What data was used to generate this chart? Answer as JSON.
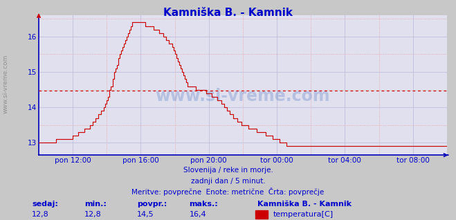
{
  "title": "Kamniška B. - Kamnik",
  "title_color": "#0000cc",
  "bg_color": "#c8c8c8",
  "plot_bg_color": "#e0e0ee",
  "line_color": "#cc0000",
  "avg_value": 14.47,
  "avg_line_color": "#cc0000",
  "axis_color": "#0000bb",
  "tick_color": "#0000cc",
  "ylim": [
    12.65,
    16.6
  ],
  "yticks": [
    13,
    14,
    15,
    16
  ],
  "xlim": [
    0,
    287
  ],
  "xtick_positions": [
    24,
    72,
    120,
    168,
    216,
    264
  ],
  "xtick_labels": [
    "pon 12:00",
    "pon 16:00",
    "pon 20:00",
    "tor 00:00",
    "tor 04:00",
    "tor 08:00"
  ],
  "side_text": "www.si-vreme.com",
  "watermark": "www.si-vreme.com",
  "subtitle1": "Slovenija / reke in morje.",
  "subtitle2": "zadnji dan / 5 minut.",
  "subtitle3": "Meritve: povprečne  Enote: metrične  Črta: povprečje",
  "footer_labels": [
    "sedaj:",
    "min.:",
    "povpr.:",
    "maks.:"
  ],
  "footer_values": [
    "12,8",
    "12,8",
    "14,5",
    "16,4"
  ],
  "legend_title": "Kamniška B. - Kamnik",
  "legend_label": "temperatura[C]",
  "legend_color": "#cc0000",
  "temperature_data": [
    13.0,
    13.0,
    13.0,
    13.0,
    13.0,
    13.0,
    13.0,
    13.0,
    13.0,
    13.0,
    13.0,
    13.0,
    13.1,
    13.1,
    13.1,
    13.1,
    13.1,
    13.1,
    13.1,
    13.1,
    13.1,
    13.1,
    13.1,
    13.1,
    13.2,
    13.2,
    13.2,
    13.2,
    13.3,
    13.3,
    13.3,
    13.3,
    13.4,
    13.4,
    13.4,
    13.4,
    13.5,
    13.5,
    13.6,
    13.6,
    13.7,
    13.7,
    13.8,
    13.8,
    13.9,
    13.9,
    14.0,
    14.1,
    14.2,
    14.3,
    14.5,
    14.6,
    14.8,
    15.0,
    15.1,
    15.2,
    15.4,
    15.5,
    15.6,
    15.7,
    15.8,
    15.9,
    16.0,
    16.1,
    16.2,
    16.3,
    16.4,
    16.4,
    16.4,
    16.4,
    16.4,
    16.4,
    16.4,
    16.4,
    16.4,
    16.3,
    16.3,
    16.3,
    16.3,
    16.3,
    16.3,
    16.2,
    16.2,
    16.2,
    16.2,
    16.1,
    16.1,
    16.1,
    16.0,
    16.0,
    15.9,
    15.9,
    15.8,
    15.8,
    15.7,
    15.6,
    15.5,
    15.4,
    15.3,
    15.2,
    15.1,
    15.0,
    14.9,
    14.8,
    14.7,
    14.6,
    14.6,
    14.6,
    14.6,
    14.6,
    14.6,
    14.5,
    14.5,
    14.5,
    14.5,
    14.5,
    14.5,
    14.5,
    14.4,
    14.4,
    14.4,
    14.4,
    14.3,
    14.3,
    14.3,
    14.3,
    14.2,
    14.2,
    14.2,
    14.1,
    14.1,
    14.0,
    14.0,
    13.9,
    13.9,
    13.8,
    13.8,
    13.7,
    13.7,
    13.7,
    13.6,
    13.6,
    13.6,
    13.5,
    13.5,
    13.5,
    13.5,
    13.5,
    13.4,
    13.4,
    13.4,
    13.4,
    13.4,
    13.4,
    13.3,
    13.3,
    13.3,
    13.3,
    13.3,
    13.3,
    13.2,
    13.2,
    13.2,
    13.2,
    13.2,
    13.1,
    13.1,
    13.1,
    13.1,
    13.1,
    13.0,
    13.0,
    13.0,
    13.0,
    13.0,
    12.9,
    12.9,
    12.9,
    12.9,
    12.9,
    12.9,
    12.9,
    12.9,
    12.9,
    12.9,
    12.9,
    12.9,
    12.9,
    12.9,
    12.9,
    12.9,
    12.9,
    12.9,
    12.9,
    12.9,
    12.9,
    12.9,
    12.9,
    12.9,
    12.9,
    12.9,
    12.9,
    12.9,
    12.9,
    12.9,
    12.9,
    12.9,
    12.9,
    12.9,
    12.9,
    12.9,
    12.9,
    12.9,
    12.9,
    12.9,
    12.9,
    12.9,
    12.9,
    12.9,
    12.9,
    12.9,
    12.9,
    12.9,
    12.9,
    12.9,
    12.9,
    12.9,
    12.9,
    12.9,
    12.9,
    12.9,
    12.9,
    12.9,
    12.9,
    12.9,
    12.9,
    12.9,
    12.9,
    12.9,
    12.9,
    12.9,
    12.9,
    12.9,
    12.9,
    12.9,
    12.9,
    12.9,
    12.9,
    12.9,
    12.9,
    12.9,
    12.9,
    12.9,
    12.9,
    12.9,
    12.9,
    12.9,
    12.9,
    12.9,
    12.9,
    12.9,
    12.9,
    12.9,
    12.9,
    12.9,
    12.9,
    12.9,
    12.9,
    12.9,
    12.9,
    12.9,
    12.9,
    12.9,
    12.9,
    12.9,
    12.9,
    12.9,
    12.9,
    12.9,
    12.9,
    12.9,
    12.9,
    12.9,
    12.9,
    12.9,
    12.9,
    12.9,
    12.9,
    12.9,
    12.8
  ]
}
